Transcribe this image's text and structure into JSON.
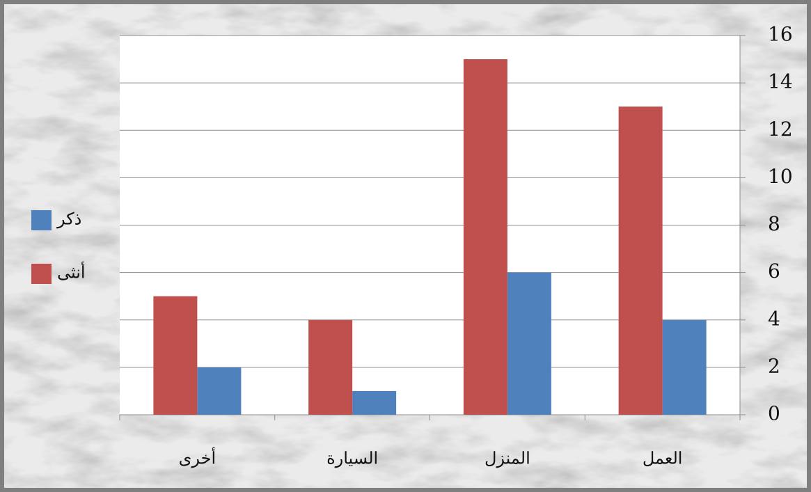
{
  "chart_data": {
    "type": "bar",
    "categories": [
      "العمل",
      "المنزل",
      "السيارة",
      "أخرى"
    ],
    "series": [
      {
        "name": "ذكر",
        "color": "#4f81bd",
        "values": [
          4,
          6,
          1,
          2
        ]
      },
      {
        "name": "أنثى",
        "color": "#c0504d",
        "values": [
          13,
          15,
          4,
          5
        ]
      }
    ],
    "ylim": [
      0,
      16
    ],
    "yticks": [
      0,
      2,
      4,
      6,
      8,
      10,
      12,
      14,
      16
    ],
    "grid": true,
    "legend": "left",
    "direction": "rtl"
  }
}
